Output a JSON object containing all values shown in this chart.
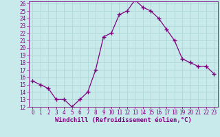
{
  "x": [
    0,
    1,
    2,
    3,
    4,
    5,
    6,
    7,
    8,
    9,
    10,
    11,
    12,
    13,
    14,
    15,
    16,
    17,
    18,
    19,
    20,
    21,
    22,
    23
  ],
  "y": [
    15.5,
    15.0,
    14.5,
    13.0,
    13.0,
    12.0,
    13.0,
    14.0,
    17.0,
    21.5,
    22.0,
    24.5,
    25.0,
    26.5,
    25.5,
    25.0,
    24.0,
    22.5,
    21.0,
    18.5,
    18.0,
    17.5,
    17.5,
    16.5
  ],
  "line_color": "#800080",
  "marker": "+",
  "marker_size": 4,
  "bg_color": "#c8eaea",
  "grid_color": "#b0d8d8",
  "xlabel": "Windchill (Refroidissement éolien,°C)",
  "ylabel": "",
  "xlim_min": -0.5,
  "xlim_max": 23.5,
  "ylim_min": 12,
  "ylim_max": 26.3,
  "yticks": [
    12,
    13,
    14,
    15,
    16,
    17,
    18,
    19,
    20,
    21,
    22,
    23,
    24,
    25,
    26
  ],
  "xticks": [
    0,
    1,
    2,
    3,
    4,
    5,
    6,
    7,
    8,
    9,
    10,
    11,
    12,
    13,
    14,
    15,
    16,
    17,
    18,
    19,
    20,
    21,
    22,
    23
  ],
  "tick_color": "#800080",
  "label_color": "#800080",
  "axis_color": "#800080",
  "tick_fontsize": 5.5,
  "xlabel_fontsize": 6.5
}
